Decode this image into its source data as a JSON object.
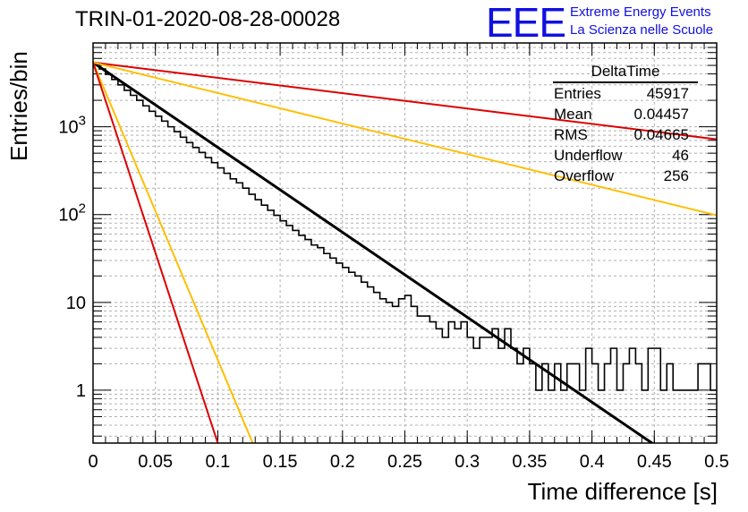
{
  "title": "TRIN-01-2020-08-28-00028",
  "logo": {
    "mark": "EEE",
    "line1": "Extreme Energy Events",
    "line2": "La Scienza nelle Scuole"
  },
  "stats_box": {
    "name": "DeltaTime",
    "rows": [
      {
        "label": "Entries",
        "value": "45917"
      },
      {
        "label": "Mean",
        "value": "0.04457"
      },
      {
        "label": "RMS",
        "value": "0.04665"
      },
      {
        "label": "Underflow",
        "value": "46"
      },
      {
        "label": "Overflow",
        "value": "256"
      }
    ]
  },
  "chart_data": {
    "type": "line",
    "title": "TRIN-01-2020-08-28-00028",
    "xlabel": "Time difference [s]",
    "ylabel": "Entries/bin",
    "xlim": [
      0,
      0.5
    ],
    "ylim": [
      0.25,
      9000
    ],
    "yscale": "log",
    "grid": true,
    "x_ticks": [
      "0",
      "0.05",
      "0.1",
      "0.15",
      "0.2",
      "0.25",
      "0.3",
      "0.35",
      "0.4",
      "0.45",
      "0.5"
    ],
    "y_ticks": [
      "1",
      "10",
      "10^2",
      "10^3"
    ],
    "histogram": {
      "bin_width": 0.005,
      "x_start": 0,
      "color": "#000000",
      "counts": [
        5200,
        4550,
        3950,
        3450,
        3000,
        2600,
        2280,
        2000,
        1730,
        1500,
        1320,
        1160,
        1000,
        880,
        760,
        660,
        580,
        510,
        445,
        390,
        340,
        295,
        255,
        230,
        200,
        170,
        148,
        128,
        112,
        98,
        85,
        75,
        66,
        58,
        52,
        45,
        42,
        36,
        32,
        28,
        25,
        22,
        20,
        17,
        15,
        13,
        11,
        10,
        9,
        11,
        12,
        9,
        7,
        7,
        6,
        5,
        4,
        6,
        5,
        6,
        4,
        3,
        4,
        4,
        5,
        3,
        5,
        3,
        2,
        3,
        2,
        1,
        2,
        1,
        2,
        1,
        2,
        2,
        1,
        3,
        2,
        1,
        2,
        3,
        1,
        2,
        3,
        2,
        1,
        3,
        3,
        1,
        2,
        1,
        1,
        1,
        1,
        2,
        2,
        1
      ]
    },
    "series": [
      {
        "name": "",
        "color": "#000000",
        "x": [
          0,
          0.45
        ],
        "y": [
          5400,
          0.24
        ]
      },
      {
        "name": "",
        "color": "#dd0000",
        "x": [
          0,
          0.5
        ],
        "y": [
          5400,
          720
        ]
      },
      {
        "name": "",
        "color": "#ffbf00",
        "x": [
          0,
          0.5
        ],
        "y": [
          5400,
          98
        ]
      },
      {
        "name": "",
        "color": "#ffbf00",
        "x": [
          0,
          0.128
        ],
        "y": [
          5400,
          0.25
        ]
      },
      {
        "name": "",
        "color": "#dd0000",
        "x": [
          0,
          0.1
        ],
        "y": [
          5400,
          0.25
        ]
      }
    ]
  }
}
